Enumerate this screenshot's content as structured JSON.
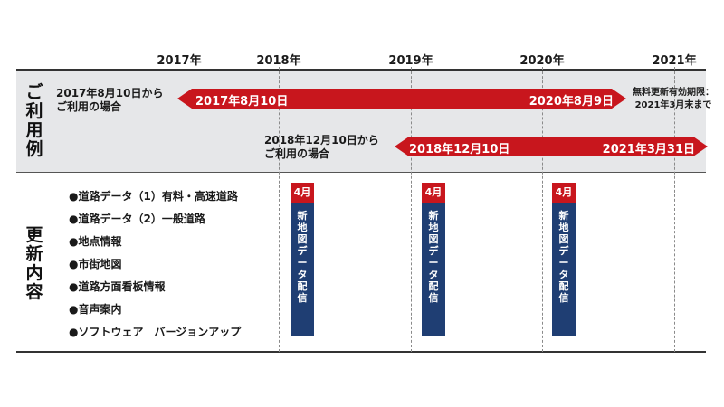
{
  "timeline": {
    "years": [
      "2017年",
      "2018年",
      "2019年",
      "2020年",
      "2021年"
    ]
  },
  "sections": {
    "usage_example": {
      "title": [
        "ご",
        "利",
        "用",
        "例"
      ]
    },
    "update_content": {
      "title": [
        "更",
        "新",
        "内",
        "容"
      ]
    }
  },
  "usage": {
    "case1": {
      "label_lines": [
        "2017年8月10日から",
        "ご利用の場合"
      ],
      "start": "2017年8月10日",
      "end": "2020年8月9日",
      "note_lines": [
        "無料更新有効期限：",
        "2021年3月末まで"
      ]
    },
    "case2": {
      "label_lines": [
        "2018年12月10日から",
        "ご利用の場合"
      ],
      "start": "2018年12月10日",
      "end": "2021年3月31日"
    }
  },
  "update_items": [
    "●道路データ（1）有料・高速道路",
    "●道路データ（2）一般道路",
    "●地点情報",
    "●市街地図",
    "●道路方面看板情報",
    "●音声案内",
    "●ソフトウェア　バージョンアップ"
  ],
  "deliveries": [
    {
      "month": "4月",
      "text": [
        "新",
        "地",
        "図",
        "デ",
        "ー",
        "タ",
        "配",
        "信"
      ]
    },
    {
      "month": "4月",
      "text": [
        "新",
        "地",
        "図",
        "デ",
        "ー",
        "タ",
        "配",
        "信"
      ]
    },
    {
      "month": "4月",
      "text": [
        "新",
        "地",
        "図",
        "デ",
        "ー",
        "タ",
        "配",
        "信"
      ]
    }
  ],
  "colors": {
    "red": "#c8161d",
    "navy": "#1f3e73",
    "grey_band": "#e6e7e9"
  }
}
